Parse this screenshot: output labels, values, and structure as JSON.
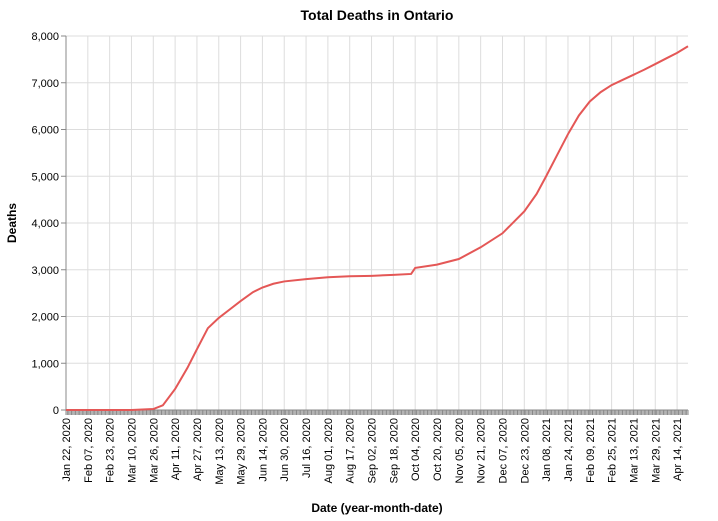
{
  "chart_data": {
    "type": "line",
    "title": "Total Deaths in Ontario",
    "xlabel": "Date (year-month-date)",
    "ylabel": "Deaths",
    "x_range": [
      "2020-01-22",
      "2021-04-22"
    ],
    "ylim": [
      0,
      8000
    ],
    "grid": true,
    "line_color": "#e45756",
    "y_ticks": [
      {
        "value": 0,
        "label": "0"
      },
      {
        "value": 1000,
        "label": "1,000"
      },
      {
        "value": 2000,
        "label": "2,000"
      },
      {
        "value": 3000,
        "label": "3,000"
      },
      {
        "value": 4000,
        "label": "4,000"
      },
      {
        "value": 5000,
        "label": "5,000"
      },
      {
        "value": 6000,
        "label": "6,000"
      },
      {
        "value": 7000,
        "label": "7,000"
      },
      {
        "value": 8000,
        "label": "8,000"
      }
    ],
    "x_ticks": [
      {
        "date": "2020-01-22",
        "label": "Jan 22, 2020"
      },
      {
        "date": "2020-02-07",
        "label": "Feb 07, 2020"
      },
      {
        "date": "2020-02-23",
        "label": "Feb 23, 2020"
      },
      {
        "date": "2020-03-10",
        "label": "Mar 10, 2020"
      },
      {
        "date": "2020-03-26",
        "label": "Mar 26, 2020"
      },
      {
        "date": "2020-04-11",
        "label": "Apr 11, 2020"
      },
      {
        "date": "2020-04-27",
        "label": "Apr 27, 2020"
      },
      {
        "date": "2020-05-13",
        "label": "May 13, 2020"
      },
      {
        "date": "2020-05-29",
        "label": "May 29, 2020"
      },
      {
        "date": "2020-06-14",
        "label": "Jun 14, 2020"
      },
      {
        "date": "2020-06-30",
        "label": "Jun 30, 2020"
      },
      {
        "date": "2020-07-16",
        "label": "Jul 16, 2020"
      },
      {
        "date": "2020-08-01",
        "label": "Aug 01, 2020"
      },
      {
        "date": "2020-08-17",
        "label": "Aug 17, 2020"
      },
      {
        "date": "2020-09-02",
        "label": "Sep 02, 2020"
      },
      {
        "date": "2020-09-18",
        "label": "Sep 18, 2020"
      },
      {
        "date": "2020-10-04",
        "label": "Oct 04, 2020"
      },
      {
        "date": "2020-10-20",
        "label": "Oct 20, 2020"
      },
      {
        "date": "2020-11-05",
        "label": "Nov 05, 2020"
      },
      {
        "date": "2020-11-21",
        "label": "Nov 21, 2020"
      },
      {
        "date": "2020-12-07",
        "label": "Dec 07, 2020"
      },
      {
        "date": "2020-12-23",
        "label": "Dec 23, 2020"
      },
      {
        "date": "2021-01-08",
        "label": "Jan 08, 2021"
      },
      {
        "date": "2021-01-24",
        "label": "Jan 24, 2021"
      },
      {
        "date": "2021-02-09",
        "label": "Feb 09, 2021"
      },
      {
        "date": "2021-02-25",
        "label": "Feb 25, 2021"
      },
      {
        "date": "2021-03-13",
        "label": "Mar 13, 2021"
      },
      {
        "date": "2021-03-29",
        "label": "Mar 29, 2021"
      },
      {
        "date": "2021-04-14",
        "label": "Apr 14, 2021"
      }
    ],
    "series": [
      {
        "points": [
          [
            "2020-01-22",
            0
          ],
          [
            "2020-03-10",
            0
          ],
          [
            "2020-03-26",
            20
          ],
          [
            "2020-04-02",
            100
          ],
          [
            "2020-04-11",
            450
          ],
          [
            "2020-04-20",
            900
          ],
          [
            "2020-04-27",
            1300
          ],
          [
            "2020-05-05",
            1750
          ],
          [
            "2020-05-13",
            1970
          ],
          [
            "2020-05-21",
            2150
          ],
          [
            "2020-05-29",
            2330
          ],
          [
            "2020-06-07",
            2520
          ],
          [
            "2020-06-14",
            2620
          ],
          [
            "2020-06-22",
            2700
          ],
          [
            "2020-06-30",
            2750
          ],
          [
            "2020-07-16",
            2800
          ],
          [
            "2020-08-01",
            2840
          ],
          [
            "2020-08-17",
            2860
          ],
          [
            "2020-09-02",
            2870
          ],
          [
            "2020-09-18",
            2890
          ],
          [
            "2020-10-01",
            2910
          ],
          [
            "2020-10-04",
            3040
          ],
          [
            "2020-10-20",
            3110
          ],
          [
            "2020-11-05",
            3230
          ],
          [
            "2020-11-21",
            3480
          ],
          [
            "2020-12-07",
            3780
          ],
          [
            "2020-12-23",
            4250
          ],
          [
            "2021-01-01",
            4620
          ],
          [
            "2021-01-08",
            5000
          ],
          [
            "2021-01-16",
            5450
          ],
          [
            "2021-01-24",
            5900
          ],
          [
            "2021-02-01",
            6300
          ],
          [
            "2021-02-09",
            6600
          ],
          [
            "2021-02-17",
            6800
          ],
          [
            "2021-02-25",
            6950
          ],
          [
            "2021-03-05",
            7060
          ],
          [
            "2021-03-13",
            7170
          ],
          [
            "2021-03-21",
            7280
          ],
          [
            "2021-03-29",
            7400
          ],
          [
            "2021-04-06",
            7520
          ],
          [
            "2021-04-14",
            7640
          ],
          [
            "2021-04-22",
            7780
          ]
        ]
      }
    ]
  }
}
